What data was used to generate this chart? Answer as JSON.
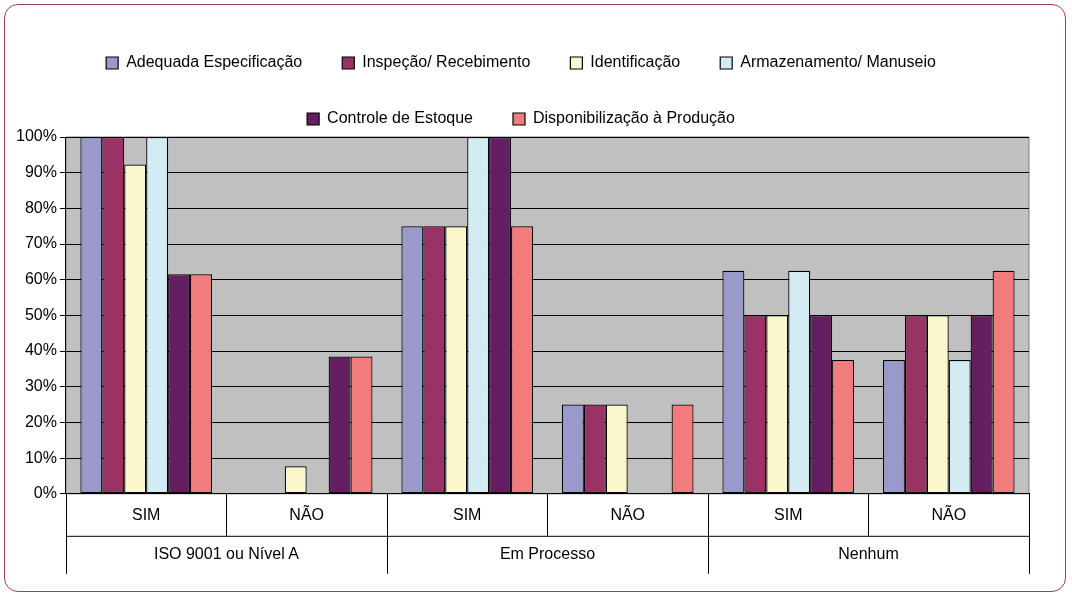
{
  "chart_data": {
    "type": "bar",
    "categories": [
      "SIM",
      "NÃO",
      "SIM",
      "NÃO",
      "SIM",
      "NÃO"
    ],
    "annotations": [
      "ISO 9001 ou Nível A",
      "Em Processo",
      "Nenhum"
    ],
    "series": [
      {
        "name": "Adequada Especificação",
        "color": "#9999cc",
        "values": [
          100,
          0,
          75,
          25,
          62.5,
          37.5
        ]
      },
      {
        "name": "Inspeção/ Recebimento",
        "color": "#993366",
        "values": [
          100,
          0,
          75,
          25,
          50,
          50
        ]
      },
      {
        "name": "Identificação",
        "color": "#fbf7cd",
        "values": [
          92.3,
          7.7,
          75,
          25,
          50,
          50
        ]
      },
      {
        "name": "Armazenamento/ Manuseio",
        "color": "#d3ecf3",
        "values": [
          100,
          0,
          100,
          0,
          62.5,
          37.5
        ]
      },
      {
        "name": "Controle de Estoque",
        "color": "#641e62",
        "values": [
          61.5,
          38.5,
          100,
          0,
          50,
          50
        ]
      },
      {
        "name": "Disponibilização à Produção",
        "color": "#f27c7c",
        "values": [
          61.5,
          38.5,
          75,
          25,
          37.5,
          62.5
        ]
      }
    ],
    "ylim": [
      0,
      100
    ],
    "yticks": [
      {
        "value": 0,
        "label": "0%"
      },
      {
        "value": 10,
        "label": "10%"
      },
      {
        "value": 20,
        "label": "20%"
      },
      {
        "value": 30,
        "label": "30%"
      },
      {
        "value": 40,
        "label": "40%"
      },
      {
        "value": 50,
        "label": "50%"
      },
      {
        "value": 60,
        "label": "60%"
      },
      {
        "value": 70,
        "label": "70%"
      },
      {
        "value": 80,
        "label": "80%"
      },
      {
        "value": 90,
        "label": "90%"
      },
      {
        "value": 100,
        "label": "100%"
      }
    ],
    "grid": "y",
    "legend": "top"
  }
}
